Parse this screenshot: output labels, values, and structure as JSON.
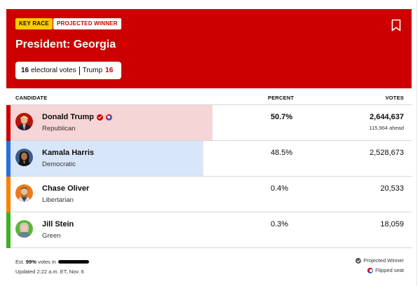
{
  "header": {
    "badge_key": "KEY RACE",
    "badge_projected": "PROJECTED WINNER",
    "title": "President: Georgia",
    "ev_count": "16",
    "ev_label": "electoral votes",
    "ev_leader_name": "Trump",
    "ev_leader_count": "16",
    "bookmark_icon": "bookmark-icon"
  },
  "columns": {
    "candidate": "CANDIDATE",
    "percent": "PERCENT",
    "votes": "VOTES"
  },
  "candidates": [
    {
      "name": "Donald Trump",
      "party": "Republican",
      "percent": "50.7%",
      "votes": "2,644,637",
      "ahead": "115,964 ahead",
      "winner": true,
      "flipped": true,
      "color": "#cc0000",
      "bar_color": "#f6d5d6",
      "share": 50.7
    },
    {
      "name": "Kamala Harris",
      "party": "Democratic",
      "percent": "48.5%",
      "votes": "2,528,673",
      "color": "#2b6fde",
      "bar_color": "#d8e6fa",
      "share": 48.5
    },
    {
      "name": "Chase Oliver",
      "party": "Libertarian",
      "percent": "0.4%",
      "votes": "20,533",
      "color": "#ff7f00",
      "share": 0.4
    },
    {
      "name": "Jill Stein",
      "party": "Green",
      "percent": "0.3%",
      "votes": "18,059",
      "color": "#3fb021",
      "share": 0.3
    }
  ],
  "footer": {
    "est_prefix": "Est.",
    "est_pct": "99%",
    "est_suffix": "votes in",
    "updated": "Updated 2:22 a.m. ET, Nov. 6",
    "legend_winner": "Projected Winner",
    "legend_flipped": "Flipped seat"
  },
  "colors": {
    "brand_red": "#cc0000"
  }
}
